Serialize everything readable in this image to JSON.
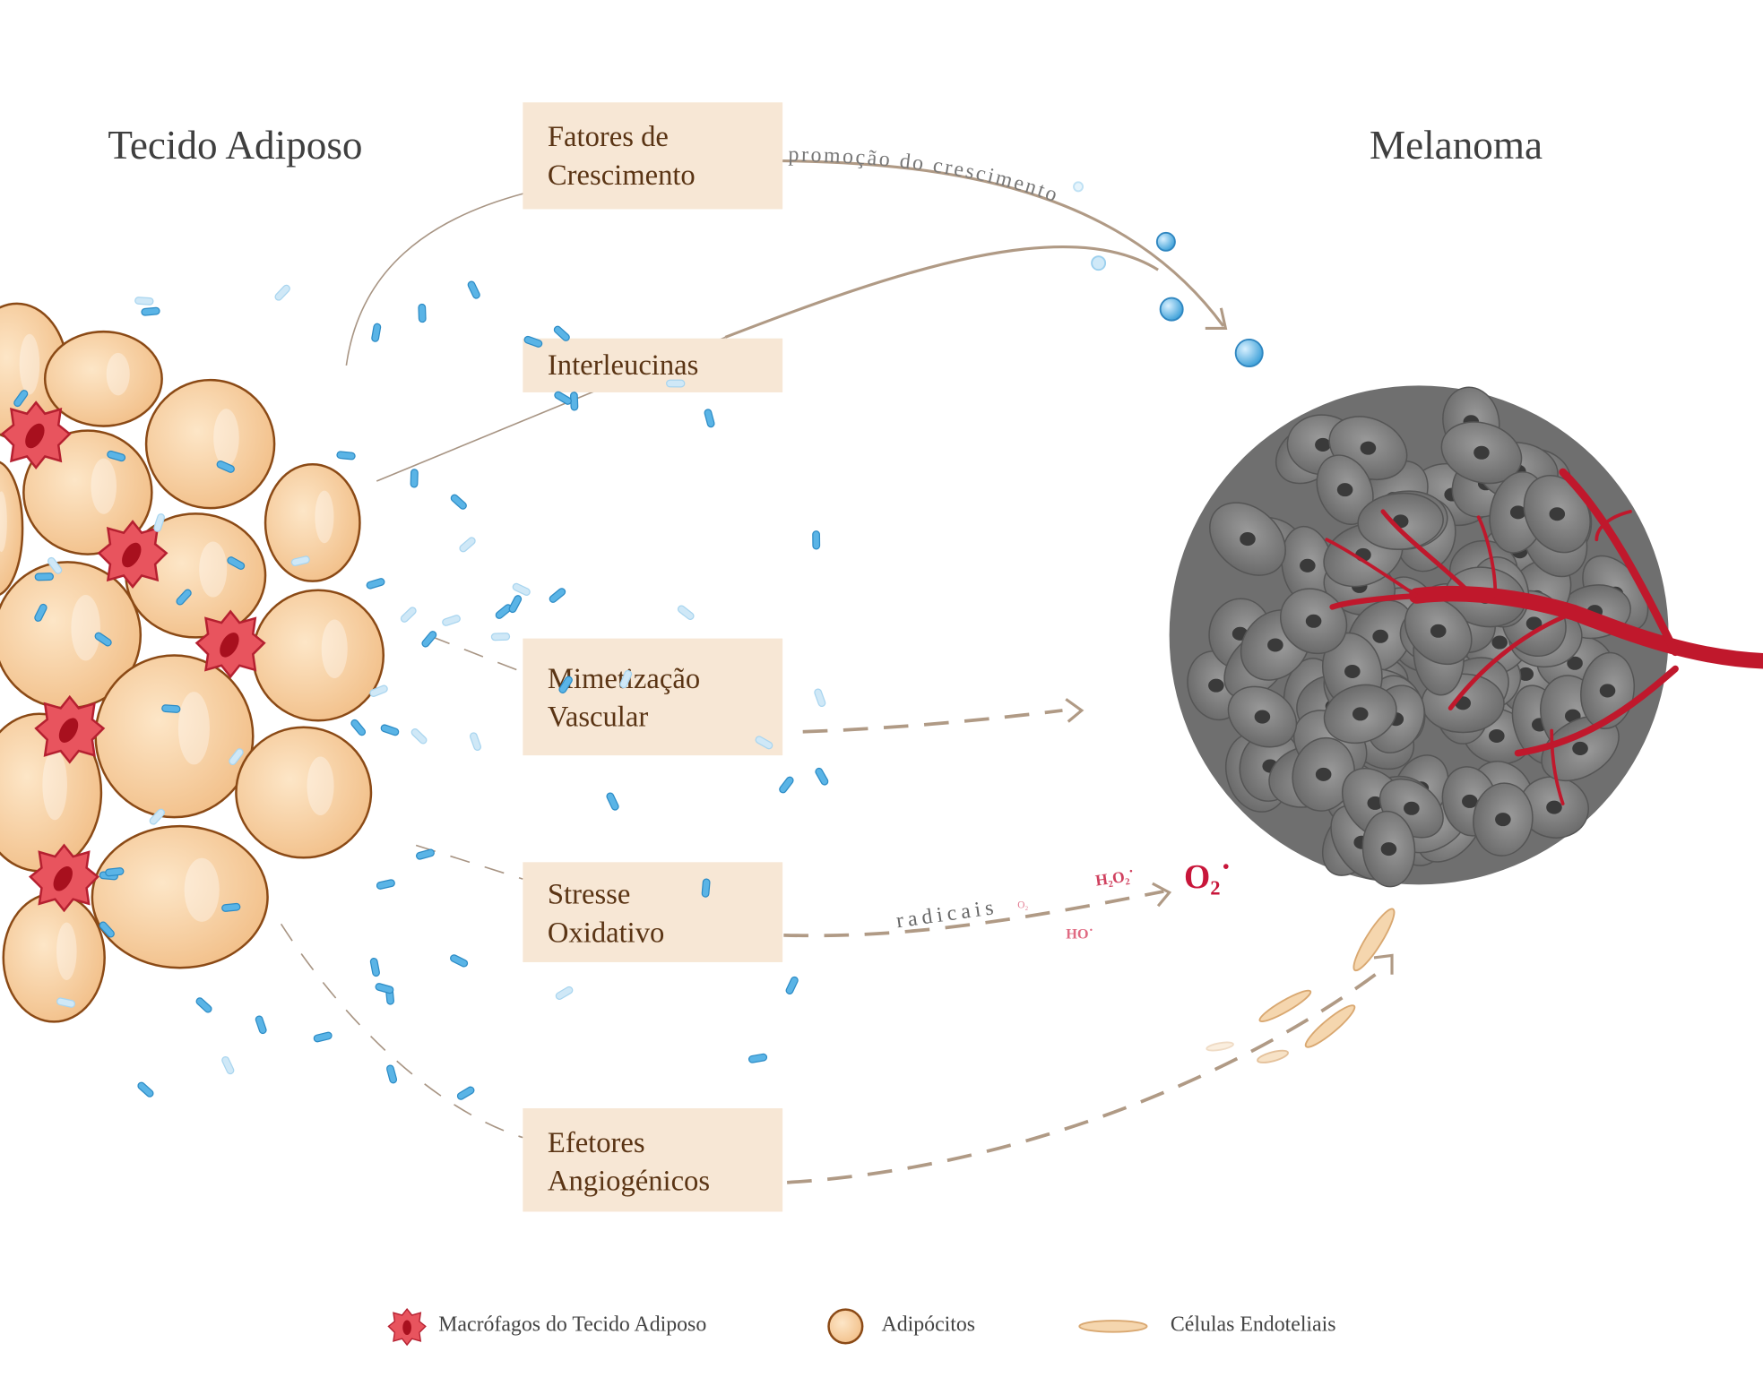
{
  "titles": {
    "left": "Tecido Adiposo",
    "right": "Melanoma"
  },
  "boxes": {
    "growth_factors": [
      "Fatores de",
      "Crescimento"
    ],
    "interleukins": [
      "Interleucinas"
    ],
    "vascular_mimicry": [
      "Mimetização",
      "Vascular"
    ],
    "oxidative_stress": [
      "Stresse",
      "Oxidativo"
    ],
    "angiogenic_effectors": [
      "Efetores",
      "Angiogénicos"
    ]
  },
  "arrow_labels": {
    "growth": "promoção do crescimento",
    "radicals": "radicais",
    "radical_small": "O₂",
    "h2o2": "H₂O₂˙",
    "ho": "HO˙",
    "superoxide": "O₂˙"
  },
  "legend": [
    {
      "icon": "macrophage-icon",
      "label": "Macrófagos do Tecido Adiposo"
    },
    {
      "icon": "adipocyte-icon",
      "label": "Adipócitos"
    },
    {
      "icon": "endothelial-cell-icon",
      "label": "Células Endoteliais"
    }
  ],
  "colors": {
    "box": "#f7e7d5",
    "box_text": "#5a3414",
    "arrow": "#b09a85",
    "radical": "#c8163a",
    "vessel": "#c0182c",
    "tumor_cell": "#7d7d7d",
    "adipocyte": "#f6cf9f",
    "bacteria": "#5ab4e6"
  }
}
